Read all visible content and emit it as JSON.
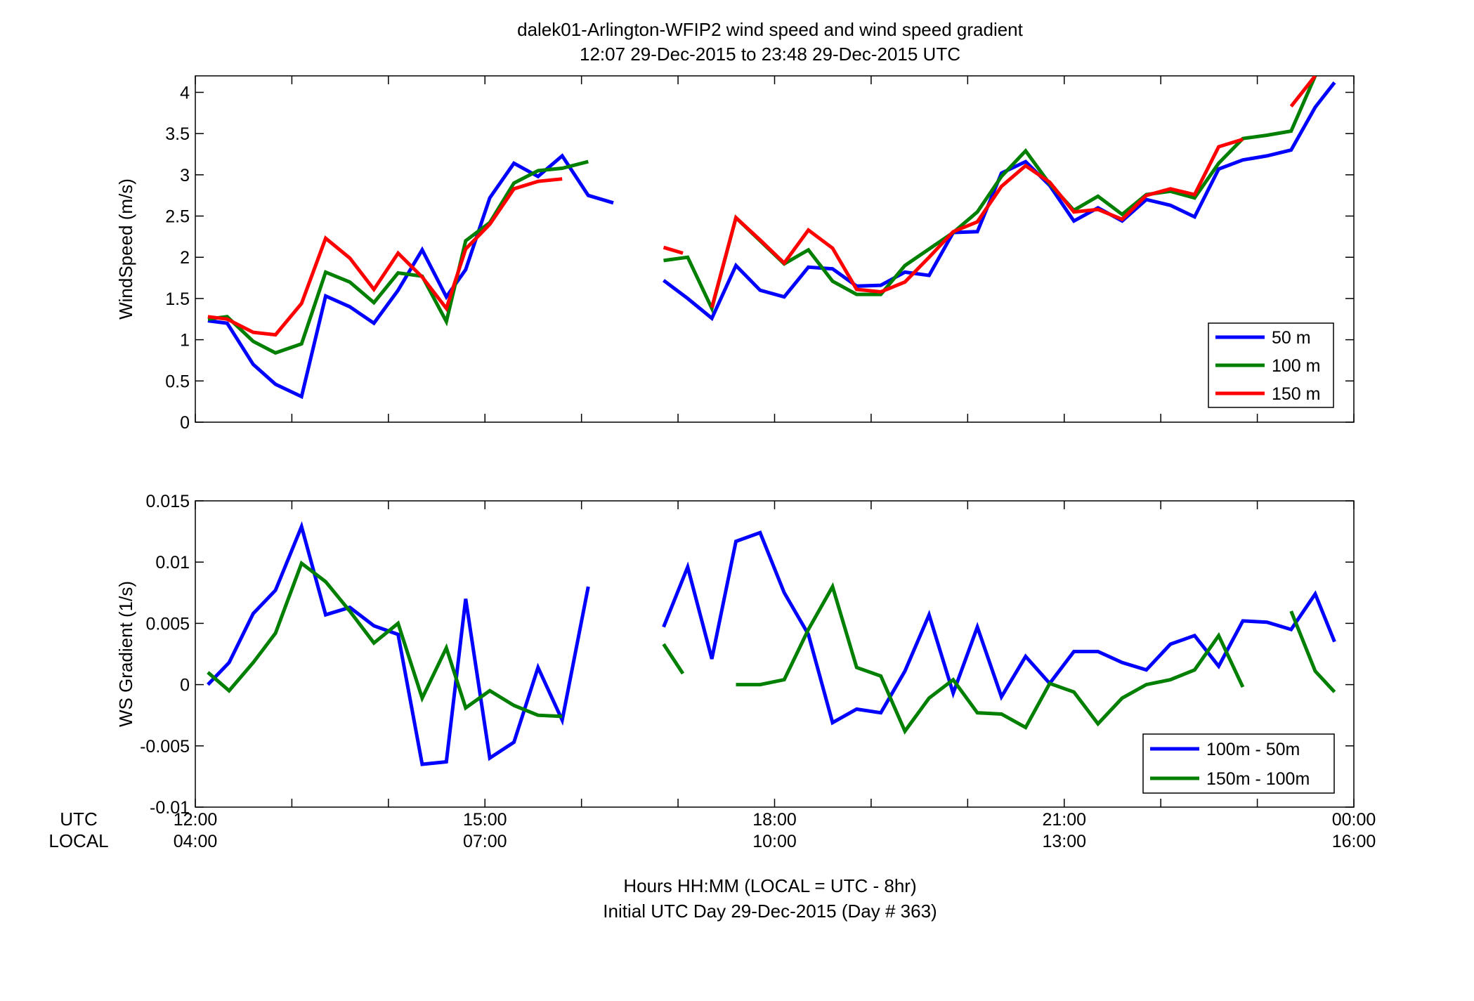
{
  "figure": {
    "title_line1": "dalek01-Arlington-WFIP2  wind speed and wind speed gradient",
    "title_line2": "12:07 29-Dec-2015 to 23:48 29-Dec-2015  UTC",
    "row_label_utc": "UTC",
    "row_label_local": "LOCAL",
    "xlabel_line1": "Hours HH:MM  (LOCAL = UTC - 8hr)",
    "xlabel_line2": "Initial UTC Day 29-Dec-2015 (Day # 363)",
    "utc_ticks": [
      "12:00",
      "15:00",
      "18:00",
      "21:00",
      "00:00"
    ],
    "local_ticks": [
      "04:00",
      "07:00",
      "10:00",
      "13:00",
      "16:00"
    ],
    "tick_hours": [
      12,
      15,
      18,
      21,
      24
    ]
  },
  "chart_data": [
    {
      "type": "line",
      "id": "windspeed",
      "ylabel": "WindSpeed (m/s)",
      "xlim": [
        12,
        24
      ],
      "ylim": [
        0,
        4.2
      ],
      "yticks": [
        0,
        0.5,
        1,
        1.5,
        2,
        2.5,
        3,
        3.5,
        4
      ],
      "ytick_labels": [
        "0",
        "0.5",
        "1",
        "1.5",
        "2",
        "2.5",
        "3",
        "3.5",
        "4"
      ],
      "legend_position": "bottom-right",
      "series": [
        {
          "name": "50 m",
          "color": "#0000ff",
          "x": [
            12.13,
            12.33,
            12.6,
            12.83,
            13.1,
            13.35,
            13.6,
            13.85,
            14.1,
            14.35,
            14.6,
            14.8,
            15.05,
            15.3,
            15.55,
            15.8,
            16.07,
            16.33,
            null,
            16.85,
            17.1,
            17.35,
            17.6,
            17.85,
            18.1,
            18.35,
            18.6,
            18.85,
            19.1,
            19.35,
            19.6,
            19.85,
            20.1,
            20.35,
            20.6,
            20.85,
            21.1,
            21.35,
            21.6,
            21.85,
            22.1,
            22.35,
            22.6,
            22.85,
            23.1,
            23.35,
            23.6,
            23.8
          ],
          "y": [
            1.23,
            1.2,
            0.7,
            0.46,
            0.31,
            1.53,
            1.4,
            1.2,
            1.6,
            2.09,
            1.52,
            1.85,
            2.72,
            3.14,
            2.98,
            3.23,
            2.75,
            2.66,
            null,
            1.72,
            1.5,
            1.26,
            1.9,
            1.6,
            1.52,
            1.88,
            1.86,
            1.65,
            1.66,
            1.82,
            1.78,
            2.3,
            2.31,
            3.02,
            3.16,
            2.87,
            2.44,
            2.6,
            2.44,
            2.7,
            2.63,
            2.49,
            3.07,
            3.18,
            3.23,
            3.3,
            3.82,
            4.12
          ]
        },
        {
          "name": "100 m",
          "color": "#007f00",
          "x": [
            12.13,
            12.33,
            12.6,
            12.83,
            13.1,
            13.35,
            13.6,
            13.85,
            14.1,
            14.35,
            14.6,
            14.8,
            15.05,
            15.3,
            15.55,
            15.8,
            16.07,
            null,
            16.85,
            17.1,
            17.35,
            17.6,
            17.85,
            18.1,
            18.35,
            18.6,
            18.85,
            19.1,
            19.35,
            19.6,
            19.85,
            20.1,
            20.35,
            20.6,
            20.85,
            21.1,
            21.35,
            21.6,
            21.85,
            22.1,
            22.35,
            22.6,
            22.85,
            23.1,
            23.35,
            23.6
          ],
          "y": [
            1.25,
            1.28,
            0.98,
            0.84,
            0.95,
            1.82,
            1.7,
            1.45,
            1.81,
            1.77,
            1.22,
            2.2,
            2.42,
            2.9,
            3.05,
            3.08,
            3.16,
            null,
            1.96,
            2.0,
            1.38,
            2.48,
            2.2,
            1.92,
            2.09,
            1.71,
            1.55,
            1.55,
            1.9,
            2.1,
            2.3,
            2.55,
            2.98,
            3.29,
            2.89,
            2.57,
            2.74,
            2.52,
            2.76,
            2.8,
            2.72,
            3.14,
            3.44,
            3.48,
            3.53,
            4.2
          ]
        },
        {
          "name": "150 m",
          "color": "#ff0000",
          "x": [
            12.13,
            12.33,
            12.6,
            12.83,
            13.1,
            13.35,
            13.6,
            13.85,
            14.1,
            14.35,
            14.6,
            14.8,
            15.05,
            15.3,
            15.55,
            15.8,
            null,
            16.85,
            17.05,
            null,
            17.35,
            17.6,
            17.85,
            18.1,
            18.35,
            18.6,
            18.85,
            19.1,
            19.35,
            19.6,
            19.85,
            20.1,
            20.35,
            20.6,
            20.85,
            21.1,
            21.35,
            21.6,
            21.85,
            22.1,
            22.35,
            22.6,
            22.85,
            null,
            23.35,
            23.6
          ],
          "y": [
            1.28,
            1.25,
            1.09,
            1.06,
            1.44,
            2.23,
            1.99,
            1.61,
            2.05,
            1.76,
            1.38,
            2.1,
            2.4,
            2.83,
            2.92,
            2.95,
            null,
            2.12,
            2.05,
            null,
            1.39,
            2.48,
            2.21,
            1.93,
            2.33,
            2.11,
            1.61,
            1.58,
            1.7,
            2.0,
            2.31,
            2.43,
            2.86,
            3.11,
            2.91,
            2.55,
            2.58,
            2.46,
            2.75,
            2.83,
            2.76,
            3.34,
            3.43,
            null,
            3.83,
            4.2
          ]
        }
      ]
    },
    {
      "type": "line",
      "id": "gradient",
      "ylabel": "WS Gradient (1/s)",
      "xlim": [
        12,
        24
      ],
      "ylim": [
        -0.01,
        0.015
      ],
      "yticks": [
        -0.01,
        -0.005,
        0,
        0.005,
        0.01,
        0.015
      ],
      "ytick_labels": [
        "-0.01",
        "-0.005",
        "0",
        "0.005",
        "0.01",
        "0.015"
      ],
      "legend_position": "bottom-right",
      "series": [
        {
          "name": "100m - 50m",
          "color": "#0000ff",
          "x": [
            12.13,
            12.35,
            12.6,
            12.83,
            13.1,
            13.35,
            13.6,
            13.85,
            14.1,
            14.35,
            14.6,
            14.8,
            15.05,
            15.3,
            15.55,
            15.8,
            16.07,
            null,
            16.85,
            17.1,
            17.35,
            17.6,
            17.85,
            18.1,
            18.35,
            18.6,
            18.85,
            19.1,
            19.35,
            19.6,
            19.85,
            20.1,
            20.35,
            20.6,
            20.85,
            21.1,
            21.35,
            21.6,
            21.85,
            22.1,
            22.35,
            22.6,
            22.85,
            23.1,
            23.35,
            23.6,
            23.8
          ],
          "y": [
            0.0,
            0.0018,
            0.0058,
            0.0077,
            0.0129,
            0.0057,
            0.0063,
            0.0048,
            0.0041,
            -0.0065,
            -0.0063,
            0.007,
            -0.006,
            -0.0047,
            0.0014,
            -0.0029,
            0.008,
            null,
            0.0047,
            0.0096,
            0.0021,
            0.0117,
            0.0124,
            0.0075,
            0.0041,
            -0.0031,
            -0.002,
            -0.0023,
            0.0011,
            0.0057,
            -0.0007,
            0.0047,
            -0.001,
            0.0023,
            0.0001,
            0.0027,
            0.0027,
            0.0018,
            0.0012,
            0.0033,
            0.004,
            0.0015,
            0.0052,
            0.0051,
            0.0045,
            0.0074,
            0.0035
          ]
        },
        {
          "name": "150m - 100m",
          "color": "#007f00",
          "x": [
            12.13,
            12.35,
            12.6,
            12.83,
            13.1,
            13.35,
            13.6,
            13.85,
            14.1,
            14.35,
            14.6,
            14.8,
            15.05,
            15.3,
            15.55,
            15.8,
            null,
            16.85,
            17.05,
            null,
            17.6,
            17.85,
            18.1,
            18.35,
            18.6,
            18.85,
            19.1,
            19.35,
            19.6,
            19.85,
            20.1,
            20.35,
            20.6,
            20.85,
            21.1,
            21.35,
            21.6,
            21.85,
            22.1,
            22.35,
            22.6,
            22.85,
            null,
            23.35,
            23.6,
            23.8
          ],
          "y": [
            0.001,
            -0.0005,
            0.0018,
            0.0042,
            0.0099,
            0.0084,
            0.006,
            0.0034,
            0.005,
            -0.0011,
            0.003,
            -0.0019,
            -0.0005,
            -0.0017,
            -0.0025,
            -0.0026,
            null,
            0.0033,
            0.0009,
            null,
            0.0,
            0.0,
            0.0004,
            0.0045,
            0.008,
            0.0014,
            0.0007,
            -0.0038,
            -0.0011,
            0.0004,
            -0.0023,
            -0.0024,
            -0.0035,
            0.0001,
            -0.0006,
            -0.0032,
            -0.0011,
            0.0,
            0.0004,
            0.0012,
            0.004,
            -0.0002,
            null,
            0.006,
            0.0011,
            -0.0006
          ]
        }
      ]
    }
  ]
}
